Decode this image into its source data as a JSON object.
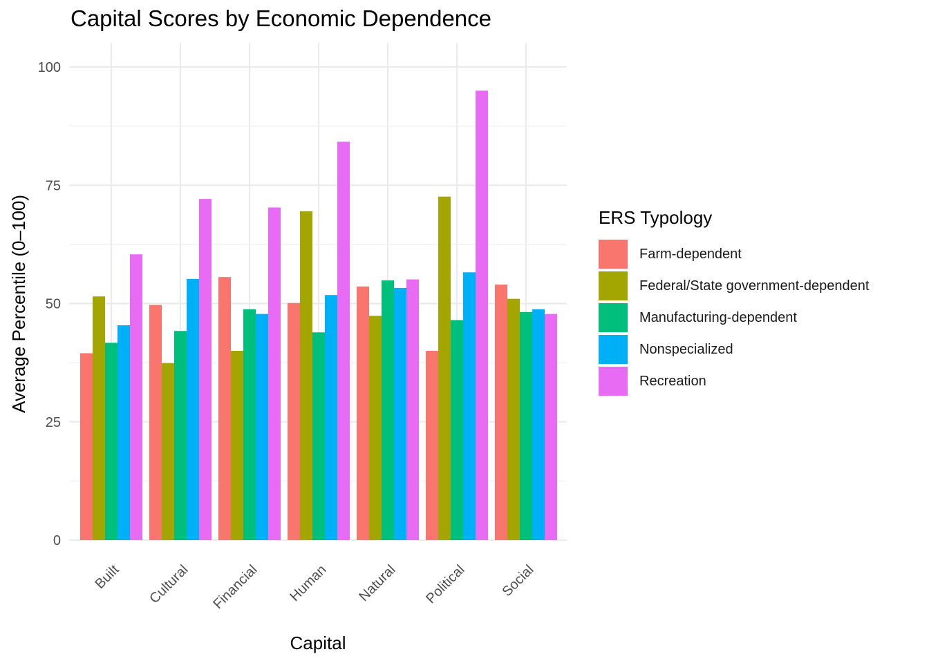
{
  "chart_data": {
    "type": "bar",
    "title": "Capital Scores by Economic Dependence",
    "xlabel": "Capital",
    "ylabel": "Average Percentile (0–100)",
    "ylim": [
      0,
      105
    ],
    "yticks": [
      0,
      25,
      50,
      75,
      100
    ],
    "grid": true,
    "legend_title": "ERS Typology",
    "legend_position": "right",
    "categories": [
      "Built",
      "Cultural",
      "Financial",
      "Human",
      "Natural",
      "Political",
      "Social"
    ],
    "series": [
      {
        "name": "Farm-dependent",
        "color": "#F8766D",
        "values": [
          39.5,
          49.7,
          55.6,
          50.1,
          53.6,
          40.0,
          54.0
        ]
      },
      {
        "name": "Federal/State government-dependent",
        "color": "#A3A500",
        "values": [
          51.5,
          37.4,
          40.0,
          69.5,
          47.4,
          72.6,
          51.0
        ]
      },
      {
        "name": "Manufacturing-dependent",
        "color": "#00BF7D",
        "values": [
          41.7,
          44.2,
          48.8,
          43.9,
          54.9,
          46.5,
          48.2
        ]
      },
      {
        "name": "Nonspecialized",
        "color": "#00B0F6",
        "values": [
          45.4,
          55.2,
          47.8,
          51.8,
          53.3,
          56.6,
          48.8
        ]
      },
      {
        "name": "Recreation",
        "color": "#E76BF3",
        "values": [
          60.4,
          72.1,
          70.3,
          84.2,
          55.1,
          95.0,
          47.8
        ]
      }
    ]
  }
}
